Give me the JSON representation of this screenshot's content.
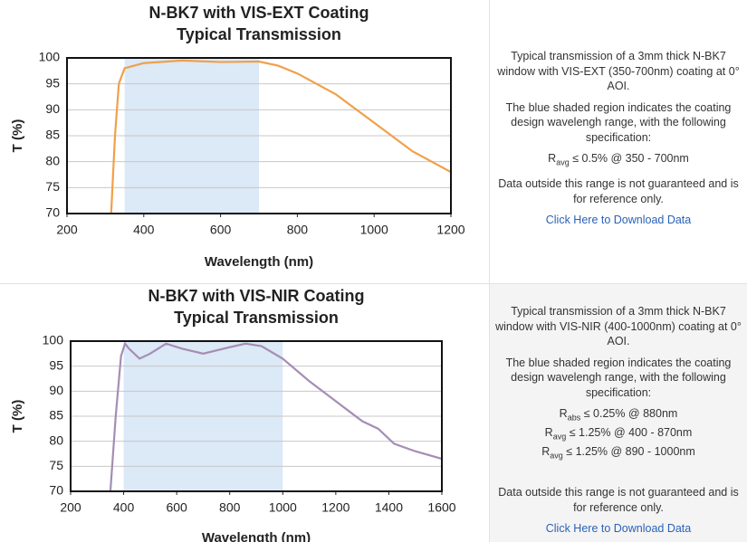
{
  "chart_data": [
    {
      "type": "line",
      "title": "N-BK7 with VIS-EXT Coating",
      "subtitle": "Typical Transmission",
      "x_label": "Wavelength (nm)",
      "y_label": "T (%)",
      "xlim": [
        200,
        1200
      ],
      "ylim": [
        70,
        100
      ],
      "xticks": [
        200,
        400,
        600,
        800,
        1000,
        1200
      ],
      "yticks": [
        70,
        75,
        80,
        85,
        90,
        95,
        100
      ],
      "grid": true,
      "shade": [
        350,
        700
      ],
      "shade_color": "#dce9f6",
      "series": [
        {
          "name": "VIS-EXT",
          "color": "#f0a04a",
          "x": [
            315,
            325,
            335,
            350,
            400,
            500,
            600,
            700,
            750,
            800,
            900,
            1000,
            1100,
            1200
          ],
          "values": [
            70,
            85,
            95,
            98,
            99,
            99.5,
            99.2,
            99.3,
            98.5,
            97,
            93,
            87.5,
            82,
            78
          ]
        }
      ]
    },
    {
      "type": "line",
      "title": "N-BK7 with VIS-NIR Coating",
      "subtitle": "Typical Transmission",
      "x_label": "Wavelength (nm)",
      "y_label": "T (%)",
      "xlim": [
        200,
        1600
      ],
      "ylim": [
        70,
        100
      ],
      "xticks": [
        200,
        400,
        600,
        800,
        1000,
        1200,
        1400,
        1600
      ],
      "yticks": [
        70,
        75,
        80,
        85,
        90,
        95,
        100
      ],
      "grid": true,
      "shade": [
        400,
        1000
      ],
      "shade_color": "#dce9f6",
      "series": [
        {
          "name": "VIS-NIR",
          "color": "#a58db5",
          "x": [
            350,
            370,
            390,
            405,
            420,
            460,
            500,
            560,
            620,
            700,
            800,
            860,
            920,
            1000,
            1100,
            1200,
            1300,
            1360,
            1420,
            1500,
            1600
          ],
          "values": [
            70,
            85,
            97,
            99.5,
            98.5,
            96.5,
            97.5,
            99.5,
            98.5,
            97.5,
            98.8,
            99.5,
            99,
            96.5,
            92,
            88,
            84,
            82.5,
            79.5,
            78,
            76.5
          ]
        }
      ]
    }
  ],
  "panels": [
    {
      "description": "Typical transmission of a 3mm thick N-BK7 window with VIS-EXT (350-700nm) coating at 0° AOI.",
      "shading_note": "The blue shaded region indicates the coating design wavelengh range, with the following specification:",
      "specs": [
        {
          "symbol": "R",
          "sub": "avg",
          "text": "≤ 0.5% @ 350 - 700nm"
        }
      ],
      "disclaimer": "Data outside this range is not guaranteed and is for reference only.",
      "link": "Click Here to Download Data"
    },
    {
      "description": "Typical transmission of a 3mm thick N-BK7 window with VIS-NIR (400-1000nm) coating at 0° AOI.",
      "shading_note": "The blue shaded region indicates the coating design wavelengh range, with the following specification:",
      "specs": [
        {
          "symbol": "R",
          "sub": "abs",
          "text": "≤ 0.25% @ 880nm"
        },
        {
          "symbol": "R",
          "sub": "avg",
          "text": "≤ 1.25% @ 400 - 870nm"
        },
        {
          "symbol": "R",
          "sub": "avg",
          "text": "≤ 1.25% @ 890 - 1000nm"
        }
      ],
      "disclaimer": "Data outside this range is not guaranteed and is for reference only.",
      "link": "Click Here to Download Data"
    }
  ]
}
